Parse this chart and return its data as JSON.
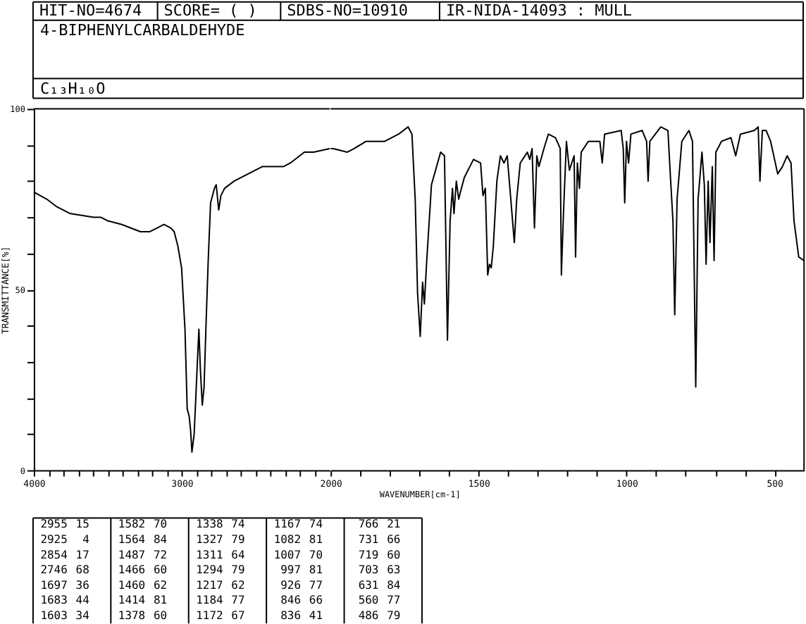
{
  "chart_data": [
    {
      "type": "line",
      "title": "4-BIPHENYLCARBALDEHYDE",
      "subtitle": "C₁₃H₁₀O",
      "annotations": [
        "HIT-NO=4674",
        "SCORE= ( )",
        "SDBS-NO=10910",
        "IR-NIDA-14093 : MULL"
      ],
      "ylabel": "TRANSMITTANCE[%]",
      "x": [
        4000,
        3912,
        3848,
        3753,
        3595,
        3547,
        3500,
        3405,
        3279,
        3215,
        3168,
        3120,
        3073,
        3051,
        3026,
        3001,
        2978,
        2963,
        2950,
        2940,
        2931,
        2916,
        2906,
        2893,
        2884,
        2874,
        2861,
        2849,
        2836,
        2821,
        2805,
        2779,
        2767,
        2750,
        2735,
        2710,
        2646,
        2551,
        2456,
        2313,
        2266,
        2171,
        2108,
        2000
      ],
      "series": [
        {
          "color": "#000000",
          "values": [
            77,
            75,
            73,
            71,
            70,
            70,
            69,
            68,
            66,
            66,
            67,
            68,
            67,
            66,
            62,
            56,
            39,
            17,
            15,
            11,
            5,
            10,
            19,
            31,
            39,
            28,
            18,
            23,
            40,
            58,
            74,
            78,
            79,
            72,
            76,
            78,
            80,
            82,
            84,
            84,
            85,
            88,
            88,
            89
          ]
        }
      ],
      "xlim": [
        4000,
        2000
      ],
      "ylim": [
        0,
        100
      ],
      "xticks": [
        4000,
        {
          "value": 3900,
          "label": null
        },
        {
          "value": 3800,
          "label": null
        },
        {
          "value": 3700,
          "label": null
        },
        {
          "value": 3600,
          "label": null
        },
        {
          "value": 3500,
          "label": null
        },
        {
          "value": 3400,
          "label": null
        },
        {
          "value": 3300,
          "label": null
        },
        {
          "value": 3200,
          "label": null
        },
        {
          "value": 3100,
          "label": null
        },
        3000,
        {
          "value": 2900,
          "label": null
        },
        {
          "value": 2800,
          "label": null
        },
        {
          "value": 2700,
          "label": null
        },
        {
          "value": 2600,
          "label": null
        },
        {
          "value": 2500,
          "label": null
        },
        {
          "value": 2400,
          "label": null
        },
        {
          "value": 2300,
          "label": null
        },
        {
          "value": 2200,
          "label": null
        },
        {
          "value": 2100,
          "label": null
        }
      ],
      "yticks": [
        0,
        {
          "value": 10,
          "label": null
        },
        {
          "value": 20,
          "label": null
        },
        {
          "value": 30,
          "label": null
        },
        {
          "value": 40,
          "label": null
        },
        50,
        {
          "value": 60,
          "label": null
        },
        {
          "value": 70,
          "label": null
        },
        {
          "value": 80,
          "label": null
        },
        {
          "value": 90,
          "label": null
        },
        100
      ]
    },
    {
      "type": "line",
      "xlabel": "WAVENUMBER[cm-1]",
      "x": [
        2000,
        1991,
        1944,
        1920,
        1880,
        1817,
        1770,
        1738,
        1725,
        1714,
        1706,
        1697,
        1689,
        1683,
        1675,
        1659,
        1628,
        1615,
        1605,
        1596,
        1588,
        1583,
        1575,
        1567,
        1561,
        1548,
        1517,
        1493,
        1485,
        1477,
        1469,
        1463,
        1457,
        1450,
        1438,
        1426,
        1414,
        1403,
        1390,
        1379,
        1371,
        1359,
        1335,
        1327,
        1319,
        1311,
        1303,
        1296,
        1279,
        1264,
        1240,
        1224,
        1220,
        1213,
        1203,
        1193,
        1185,
        1177,
        1172,
        1166,
        1159,
        1153,
        1129,
        1106,
        1090,
        1082,
        1074,
        1018,
        1011,
        1006,
        1000,
        993,
        985,
        947,
        932,
        927,
        921,
        884,
        860,
        850,
        843,
        837,
        829,
        813,
        789,
        777,
        766,
        758,
        745,
        737,
        731,
        724,
        718,
        710,
        704,
        698,
        679,
        647,
        631,
        615,
        568,
        555,
        549,
        541,
        528,
        513,
        489,
        473,
        457,
        444,
        434,
        418,
        400
      ],
      "series": [
        {
          "color": "#000000",
          "values": [
            89,
            89,
            88,
            89,
            91,
            91,
            93,
            95,
            93,
            75,
            49,
            37,
            52,
            46,
            58,
            79,
            88,
            87,
            36,
            69,
            78,
            71,
            80,
            75,
            77,
            81,
            86,
            85,
            76,
            78,
            54,
            57,
            56,
            62,
            80,
            87,
            85,
            87,
            74,
            63,
            75,
            85,
            88,
            86,
            89,
            67,
            87,
            84,
            89,
            93,
            92,
            89,
            54,
            71,
            91,
            83,
            85,
            87,
            59,
            85,
            78,
            88,
            91,
            91,
            91,
            85,
            93,
            94,
            89,
            74,
            91,
            85,
            93,
            94,
            91,
            80,
            91,
            95,
            94,
            79,
            69,
            43,
            75,
            91,
            94,
            91,
            23,
            75,
            88,
            79,
            57,
            80,
            63,
            84,
            58,
            88,
            91,
            92,
            87,
            93,
            94,
            95,
            80,
            94,
            94,
            91,
            82,
            84,
            87,
            85,
            69,
            59,
            58
          ]
        }
      ],
      "xlim": [
        2000,
        400
      ],
      "ylim": [
        0,
        100
      ],
      "xticks": [
        2000,
        {
          "value": 1900,
          "label": null
        },
        {
          "value": 1800,
          "label": null
        },
        {
          "value": 1700,
          "label": null
        },
        {
          "value": 1600,
          "label": null
        },
        1500,
        {
          "value": 1400,
          "label": null
        },
        {
          "value": 1300,
          "label": null
        },
        {
          "value": 1200,
          "label": null
        },
        {
          "value": 1100,
          "label": null
        },
        1000,
        {
          "value": 900,
          "label": null
        },
        {
          "value": 800,
          "label": null
        },
        {
          "value": 700,
          "label": null
        },
        {
          "value": 600,
          "label": null
        },
        500
      ],
      "tick_labels": "x"
    },
    {
      "type": "other",
      "categories": [
        "2955",
        "2925",
        "2854",
        "2746",
        "1697",
        "1683",
        "1603",
        "1582",
        "1564",
        "1487",
        "1466",
        "1460",
        "1414",
        "1378",
        "1338",
        "1327",
        "1311",
        "1294",
        "1217",
        "1184",
        "1172",
        "1167",
        "1082",
        "1007",
        "997",
        "926",
        "846",
        "836",
        "766",
        "731",
        "719",
        "703",
        "631",
        "560",
        "486"
      ],
      "values": [
        15,
        4,
        17,
        68,
        36,
        44,
        34,
        70,
        84,
        72,
        60,
        62,
        81,
        60,
        74,
        79,
        64,
        79,
        62,
        77,
        67,
        74,
        81,
        70,
        81,
        77,
        66,
        41,
        21,
        66,
        60,
        63,
        84,
        77,
        79
      ],
      "data_labels": true
    }
  ]
}
